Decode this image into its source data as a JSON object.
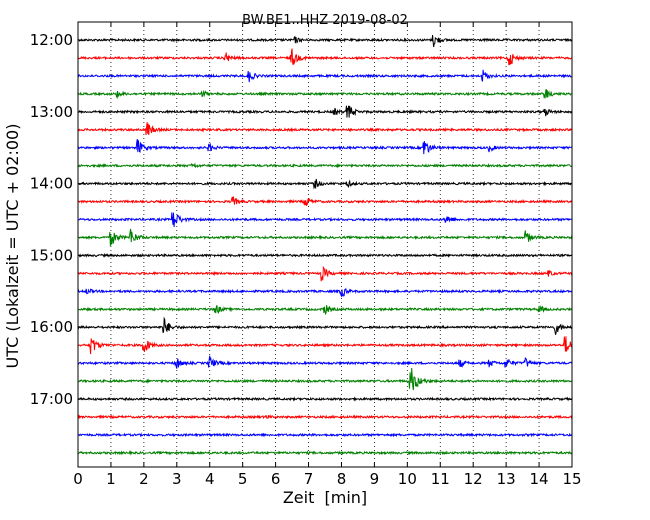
{
  "chart_data": {
    "type": "line",
    "title": "BW.BE1..HHZ 2019-08-02",
    "xlabel": "Zeit  [min]",
    "ylabel": "UTC (Lokalzeit = UTC + 02:00)",
    "xlim": [
      0,
      15
    ],
    "x_ticks": [
      "0",
      "1",
      "2",
      "3",
      "4",
      "5",
      "6",
      "7",
      "8",
      "9",
      "10",
      "11",
      "12",
      "13",
      "14",
      "15"
    ],
    "y_ticks": [
      "12:00",
      "13:00",
      "14:00",
      "15:00",
      "16:00",
      "17:00"
    ],
    "grid": "vertical dotted at each minute",
    "line_colors": [
      "#000000",
      "#ff0000",
      "#0000ff",
      "#008000"
    ],
    "traces": [
      {
        "start": "12:00",
        "events": [
          [
            6.6,
            0.3
          ],
          [
            10.8,
            0.7
          ]
        ]
      },
      {
        "start": "12:15",
        "events": [
          [
            4.5,
            0.5
          ],
          [
            6.5,
            0.9
          ],
          [
            13.1,
            0.8
          ]
        ]
      },
      {
        "start": "12:30",
        "events": [
          [
            5.2,
            0.6
          ],
          [
            12.3,
            0.6
          ]
        ]
      },
      {
        "start": "12:45",
        "events": [
          [
            1.2,
            0.3
          ],
          [
            3.8,
            0.3
          ],
          [
            14.2,
            0.6
          ]
        ]
      },
      {
        "start": "13:00",
        "events": [
          [
            7.8,
            0.3
          ],
          [
            8.2,
            0.8
          ],
          [
            14.2,
            0.4
          ]
        ]
      },
      {
        "start": "13:15",
        "events": [
          [
            2.1,
            0.8
          ]
        ]
      },
      {
        "start": "13:30",
        "events": [
          [
            1.8,
            0.9
          ],
          [
            4.0,
            0.4
          ],
          [
            10.5,
            1.0
          ],
          [
            12.5,
            0.4
          ]
        ]
      },
      {
        "start": "13:45",
        "events": [
          [
            3.5,
            0.2
          ]
        ]
      },
      {
        "start": "14:00",
        "events": [
          [
            7.2,
            0.5
          ],
          [
            8.2,
            0.3
          ]
        ]
      },
      {
        "start": "14:15",
        "events": [
          [
            4.7,
            0.5
          ],
          [
            6.9,
            0.6
          ]
        ]
      },
      {
        "start": "14:30",
        "events": [
          [
            2.9,
            1.0
          ],
          [
            11.2,
            0.5
          ]
        ]
      },
      {
        "start": "14:45",
        "events": [
          [
            1.0,
            0.9
          ],
          [
            1.6,
            0.9
          ],
          [
            13.6,
            0.7
          ]
        ]
      },
      {
        "start": "15:00",
        "events": []
      },
      {
        "start": "15:15",
        "events": [
          [
            7.4,
            0.8
          ],
          [
            14.3,
            0.3
          ]
        ]
      },
      {
        "start": "15:30",
        "events": [
          [
            0.3,
            0.3
          ],
          [
            8.0,
            0.6
          ]
        ]
      },
      {
        "start": "15:45",
        "events": [
          [
            4.2,
            0.5
          ],
          [
            7.5,
            0.5
          ],
          [
            14.0,
            0.4
          ]
        ]
      },
      {
        "start": "16:00",
        "events": [
          [
            2.6,
            1.0
          ],
          [
            14.5,
            0.7
          ]
        ]
      },
      {
        "start": "16:15",
        "events": [
          [
            0.4,
            1.0
          ],
          [
            2.0,
            0.9
          ],
          [
            14.8,
            1.0
          ]
        ]
      },
      {
        "start": "16:30",
        "events": [
          [
            3.0,
            0.6
          ],
          [
            4.0,
            0.7
          ],
          [
            11.6,
            0.4
          ],
          [
            12.5,
            0.4
          ],
          [
            13.0,
            0.6
          ],
          [
            13.6,
            0.5
          ]
        ]
      },
      {
        "start": "16:45",
        "events": [
          [
            10.1,
            1.5
          ]
        ]
      },
      {
        "start": "17:00",
        "events": []
      },
      {
        "start": "17:15",
        "events": [
          [
            5.7,
            0.2
          ]
        ]
      },
      {
        "start": "17:30",
        "events": []
      },
      {
        "start": "17:45",
        "events": []
      }
    ]
  }
}
